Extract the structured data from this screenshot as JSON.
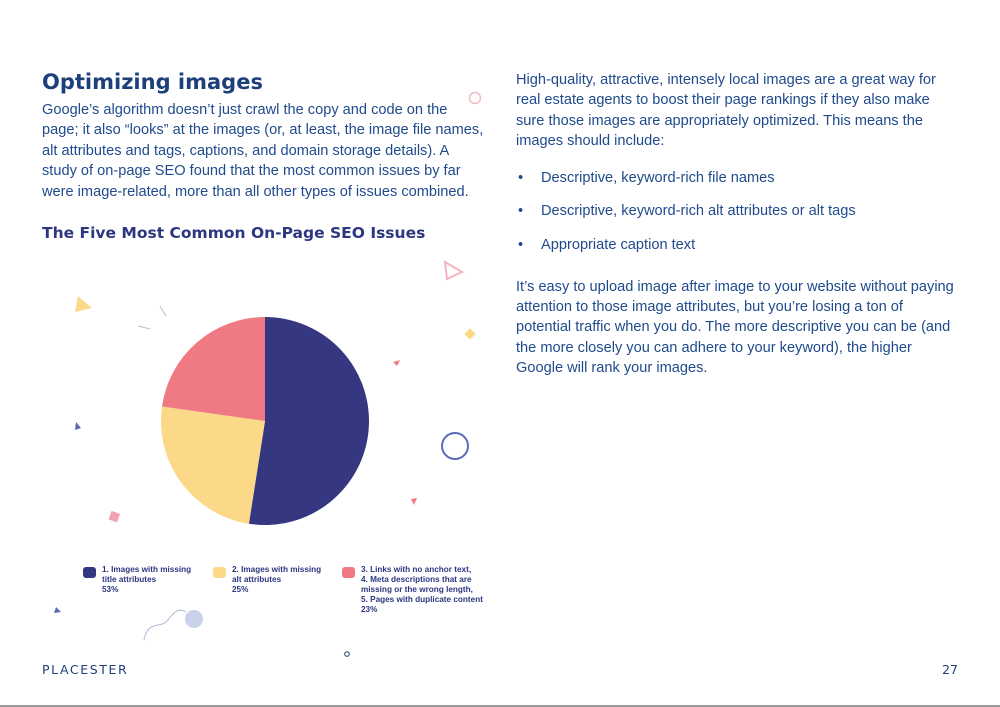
{
  "left": {
    "title": "Optimizing images",
    "paragraph": "Google’s algorithm doesn’t just crawl the copy and code on the page; it also “looks” at the images (or, at least, the image file names, alt attributes and tags, captions, and domain storage details). A study of on-page SEO found that the most common issues by far were image-related, more than all other types of issues combined."
  },
  "right": {
    "intro": "High-quality, attractive, intensely local images are a great way for real estate agents to boost their page rankings if they also make sure those images are appropriately optimized. This means the images should include:",
    "bullets": [
      "Descriptive, keyword-rich file names",
      "Descriptive, keyword-rich alt attributes or alt tags",
      "Appropriate caption text"
    ],
    "closing": "It’s easy to upload image after image to your website without paying attention to those image attributes, but you’re losing a ton of potential traffic when you do. The more descriptive you can be (and the more closely you can adhere to your keyword), the higher Google will rank your images."
  },
  "chart_data": {
    "type": "pie",
    "title": "The Five Most Common On-Page SEO Issues",
    "legend_position": "bottom",
    "slices": [
      {
        "label": "1. Images with missing\ntitle attributes",
        "percent_label": "53%",
        "value": 53,
        "color": "#353780"
      },
      {
        "label": "2. Images with missing\nalt attributes",
        "percent_label": "25%",
        "value": 25,
        "color": "#fbd989"
      },
      {
        "label": "3. Links with no anchor text,\n4. Meta descriptions that are\nmissing or the wrong length,\n5. Pages with duplicate content",
        "percent_label": "23%",
        "value": 23,
        "color": "#f07a84"
      }
    ]
  },
  "footer": {
    "brand": "PLACESTER",
    "page_number": "27"
  }
}
